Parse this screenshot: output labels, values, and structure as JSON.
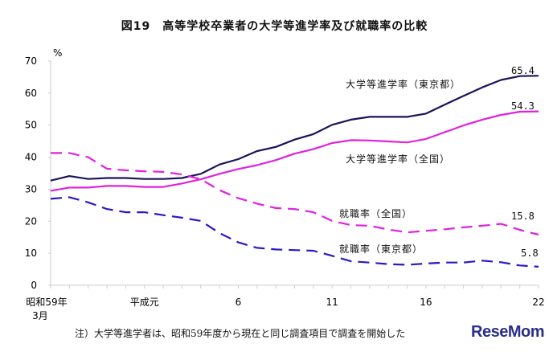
{
  "chart_data": {
    "type": "line",
    "title": "図19　高等学校卒業者の大学等進学率及び就職率の比較",
    "ylabel": "%",
    "ylim": [
      0,
      70
    ],
    "yticks": [
      0,
      10,
      20,
      30,
      40,
      50,
      60,
      70
    ],
    "xticks": [
      {
        "index": 0,
        "label": "昭和59年",
        "label2": "3月"
      },
      {
        "index": 5,
        "label": "平成元"
      },
      {
        "index": 10,
        "label": "6"
      },
      {
        "index": 15,
        "label": "11"
      },
      {
        "index": 20,
        "label": "16"
      },
      {
        "index": 26,
        "label": "22"
      }
    ],
    "grid": false,
    "series": [
      {
        "name": "大学等進学率（東京都）",
        "color": "#1a1458",
        "dash": false,
        "end_label": "65.4",
        "values": [
          32.7,
          34.1,
          33.2,
          33.5,
          33.5,
          33.2,
          33.2,
          33.5,
          34.8,
          37.7,
          39.4,
          41.9,
          43.2,
          45.5,
          47.2,
          50.1,
          51.7,
          52.6,
          52.6,
          52.6,
          53.6,
          56.4,
          59.1,
          61.8,
          64.1,
          65.3,
          65.4
        ]
      },
      {
        "name": "大学等進学率（全国）",
        "color": "#e020e0",
        "dash": false,
        "end_label": "54.3",
        "values": [
          29.5,
          30.5,
          30.5,
          31,
          31,
          30.7,
          30.7,
          31.8,
          33.1,
          34.8,
          36.3,
          37.5,
          39.1,
          41.1,
          42.5,
          44.4,
          45.3,
          45.2,
          44.9,
          44.6,
          45.7,
          47.8,
          49.9,
          51.7,
          53.2,
          54.2,
          54.3
        ]
      },
      {
        "name": "就職率（全国）",
        "color": "#e020e0",
        "dash": true,
        "end_label": "15.8",
        "values": [
          41.3,
          41.3,
          40,
          36.4,
          35.9,
          35.6,
          35.4,
          34.6,
          33.1,
          29.7,
          27.2,
          25.5,
          24.1,
          23.8,
          22.8,
          20.1,
          18.8,
          18.6,
          17.4,
          16.5,
          17,
          17.5,
          18.1,
          18.6,
          19.2,
          17.3,
          15.8
        ]
      },
      {
        "name": "就職率（東京都）",
        "color": "#2a18c8",
        "dash": true,
        "end_label": "5.8",
        "values": [
          27,
          27.5,
          25.9,
          23.8,
          22.8,
          22.8,
          21.9,
          21.1,
          20.1,
          16.3,
          13.4,
          11.7,
          11.2,
          11,
          10.8,
          9.2,
          7.5,
          7.1,
          6.6,
          6.4,
          6.8,
          7.1,
          7.1,
          7.7,
          7.2,
          6.2,
          5.8
        ]
      }
    ]
  },
  "note": "注）大学等進学者は、昭和59年度から現在と同じ調査項目で調査を開始した",
  "logo": "ReseMom"
}
